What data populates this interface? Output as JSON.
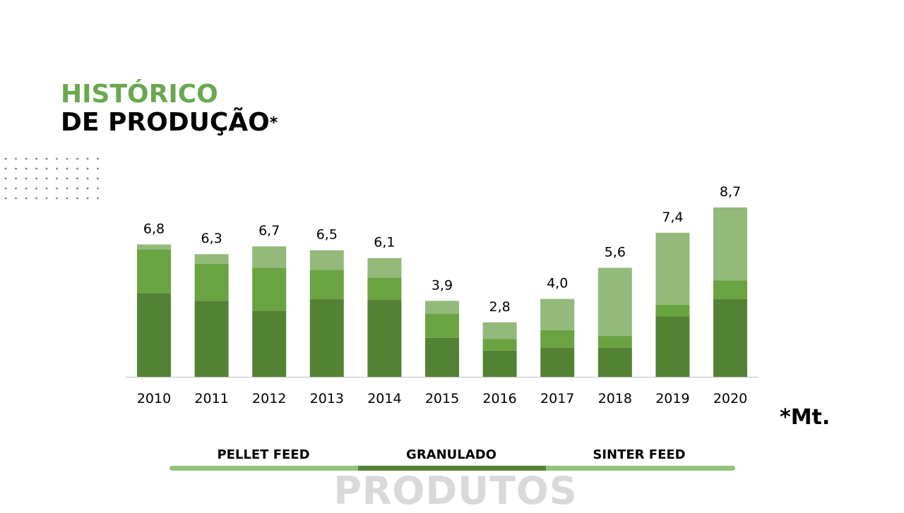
{
  "title": {
    "line1": "HISTÓRICO",
    "line2": "DE PRODUÇÃO",
    "asterisk": "*"
  },
  "unit_note": "*Mt.",
  "footer": "PRODUTOS",
  "legend": [
    {
      "label": "PELLET FEED",
      "color": "#93c47d"
    },
    {
      "label": "GRANULADO",
      "color": "#548235"
    },
    {
      "label": "SINTER FEED",
      "color": "#93c47d"
    }
  ],
  "colors": {
    "bottom": "#548235",
    "middle": "#6aa342",
    "top": "#93ba7a",
    "axis": "#bfbfbf"
  },
  "chart_data": {
    "type": "bar",
    "stacked": true,
    "categories": [
      "2010",
      "2011",
      "2012",
      "2013",
      "2014",
      "2015",
      "2016",
      "2017",
      "2018",
      "2019",
      "2020"
    ],
    "series": [
      {
        "values": [
          4.3,
          3.9,
          3.4,
          4.0,
          3.95,
          2.0,
          1.35,
          1.5,
          1.5,
          3.1,
          4.0
        ]
      },
      {
        "values": [
          2.25,
          1.9,
          2.2,
          1.5,
          1.15,
          1.25,
          0.6,
          0.9,
          0.6,
          0.6,
          0.95
        ]
      },
      {
        "values": [
          0.25,
          0.5,
          1.1,
          1.0,
          1.0,
          0.65,
          0.85,
          1.6,
          3.5,
          3.7,
          3.75
        ]
      }
    ],
    "totals": [
      "6,8",
      "6,3",
      "6,7",
      "6,5",
      "6,1",
      "3,9",
      "2,8",
      "4,0",
      "5,6",
      "7,4",
      "8,7"
    ],
    "ylim": [
      0,
      8.7
    ]
  }
}
